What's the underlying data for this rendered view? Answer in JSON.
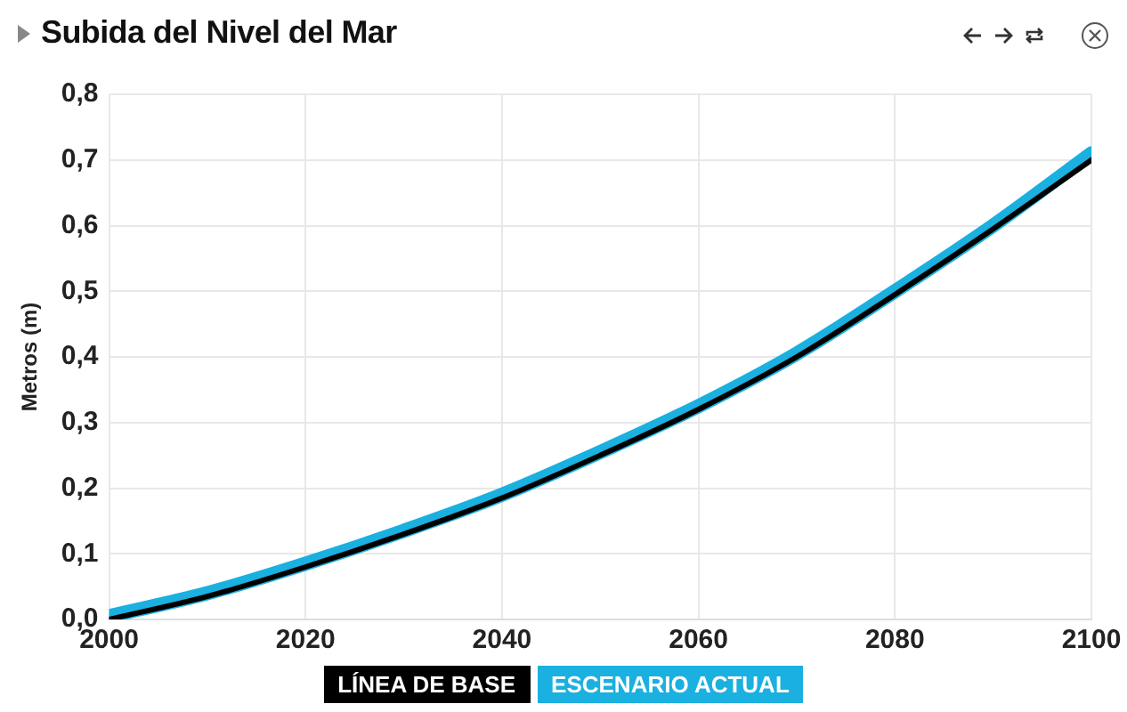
{
  "chart_data": {
    "type": "line",
    "title": "Subida del Nivel del Mar",
    "ylabel": "Metros (m)",
    "x": [
      2000,
      2010,
      2020,
      2030,
      2040,
      2050,
      2060,
      2070,
      2080,
      2090,
      2100
    ],
    "series": [
      {
        "name": "LÍNEA DE BASE",
        "color": "#000000",
        "values": [
          0,
          0.035,
          0.08,
          0.13,
          0.185,
          0.25,
          0.32,
          0.4,
          0.495,
          0.595,
          0.7
        ]
      },
      {
        "name": "ESCENARIO ACTUAL",
        "color": "#1ab0e0",
        "values": [
          0.005,
          0.04,
          0.085,
          0.135,
          0.19,
          0.255,
          0.325,
          0.405,
          0.5,
          0.6,
          0.71
        ]
      }
    ],
    "xlim": [
      2000,
      2100
    ],
    "xticks": [
      2000,
      2020,
      2040,
      2060,
      2080,
      2100
    ],
    "ylim": [
      0,
      0.8
    ],
    "yticks": [
      {
        "value": 0,
        "label": "0,0"
      },
      {
        "value": 0.1,
        "label": "0,1"
      },
      {
        "value": 0.2,
        "label": "0,2"
      },
      {
        "value": 0.3,
        "label": "0,3"
      },
      {
        "value": 0.4,
        "label": "0,4"
      },
      {
        "value": 0.5,
        "label": "0,5"
      },
      {
        "value": 0.6,
        "label": "0,6"
      },
      {
        "value": 0.7,
        "label": "0,7"
      },
      {
        "value": 0.8,
        "label": "0,8"
      }
    ],
    "grid": true,
    "legend": "bottom",
    "marker": "none",
    "line_style": "solid"
  }
}
